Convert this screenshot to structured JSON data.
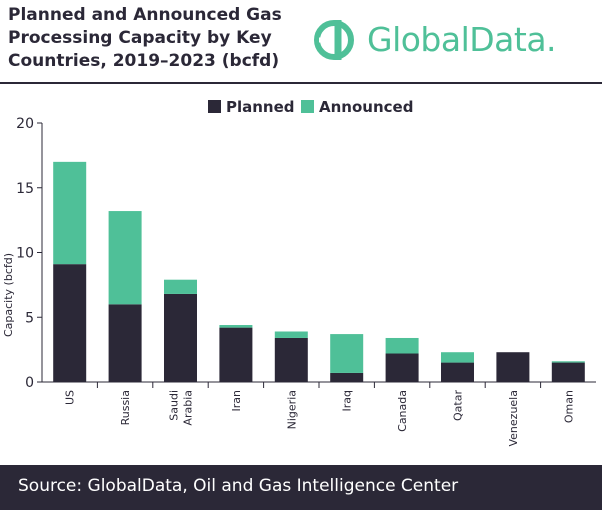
{
  "header": {
    "title": "Planned and Announced Gas Processing Capacity by Key Countries, 2019–2023 (bcfd)",
    "brand": "GlobalData."
  },
  "footer": {
    "source": "Source:  GlobalData, Oil and Gas Intelligence Center"
  },
  "colors": {
    "planned": "#2b2837",
    "announced": "#4fc098",
    "text": "#2b2837",
    "brand": "#4fc098"
  },
  "chart_data": {
    "type": "bar",
    "stacked": true,
    "title": "",
    "xlabel": "",
    "ylabel": "Capacity (bcfd)",
    "ylim": [
      0,
      20
    ],
    "yticks": [
      "0",
      "5",
      "10",
      "15",
      "20"
    ],
    "grid": false,
    "legend": "top-center",
    "categories": [
      "US",
      "Russia",
      "Saudi Arabia",
      "Iran",
      "Nigeria",
      "Iraq",
      "Canada",
      "Qatar",
      "Venezuela",
      "Oman"
    ],
    "series": [
      {
        "name": "Planned",
        "values": [
          9.1,
          6.0,
          6.8,
          4.2,
          3.4,
          0.7,
          2.2,
          1.5,
          2.3,
          1.5
        ]
      },
      {
        "name": "Announced",
        "values": [
          7.9,
          7.2,
          1.1,
          0.2,
          0.5,
          3.0,
          1.2,
          0.8,
          0.0,
          0.1
        ]
      }
    ]
  }
}
